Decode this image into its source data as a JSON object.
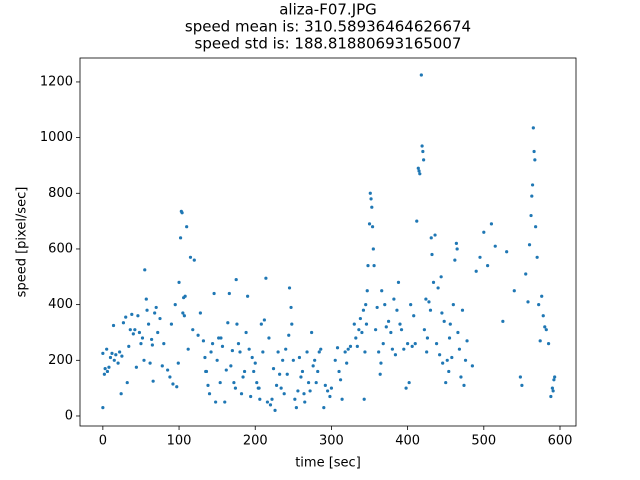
{
  "chart_data": {
    "type": "scatter",
    "title": "aliza-F07.JPG",
    "subtitle": [
      "speed mean is: 310.58936464626674",
      "speed std is: 188.81880693165007"
    ],
    "x_label": "time [sec]",
    "y_label": "speed [pixel/sec]",
    "color": "#1f77b4",
    "xlim": [
      -30,
      621
    ],
    "ylim": [
      -36,
      1286
    ],
    "xticks": [
      0,
      100,
      200,
      300,
      400,
      500,
      600
    ],
    "yticks": [
      0,
      200,
      400,
      600,
      800,
      1000,
      1200
    ],
    "x": [
      0,
      0,
      2,
      3,
      5,
      6,
      8,
      10,
      12,
      14,
      15,
      17,
      20,
      22,
      24,
      25,
      27,
      30,
      32,
      34,
      36,
      38,
      40,
      42,
      44,
      46,
      48,
      50,
      52,
      54,
      55,
      57,
      58,
      60,
      62,
      64,
      65,
      66,
      68,
      70,
      72,
      75,
      78,
      80,
      85,
      88,
      90,
      92,
      95,
      97,
      99,
      100,
      102,
      103,
      104,
      105,
      106,
      107,
      108,
      110,
      112,
      115,
      118,
      120,
      125,
      128,
      132,
      134,
      135,
      136,
      138,
      140,
      142,
      144,
      146,
      148,
      150,
      152,
      154,
      155,
      157,
      160,
      162,
      164,
      166,
      168,
      170,
      172,
      174,
      175,
      176,
      178,
      180,
      182,
      184,
      186,
      188,
      190,
      192,
      194,
      196,
      198,
      200,
      202,
      204,
      205,
      206,
      208,
      210,
      212,
      214,
      216,
      218,
      220,
      222,
      224,
      226,
      228,
      230,
      232,
      234,
      236,
      238,
      240,
      242,
      244,
      245,
      247,
      248,
      250,
      252,
      254,
      256,
      258,
      260,
      262,
      264,
      265,
      268,
      270,
      272,
      274,
      276,
      278,
      280,
      282,
      284,
      286,
      290,
      292,
      295,
      298,
      300,
      305,
      308,
      310,
      312,
      314,
      318,
      320,
      322,
      325,
      330,
      332,
      334,
      336,
      338,
      340,
      342,
      343,
      344,
      345,
      346,
      347,
      348,
      350,
      351,
      352,
      353,
      354,
      355,
      356,
      358,
      360,
      362,
      364,
      365,
      366,
      368,
      370,
      372,
      375,
      378,
      380,
      382,
      384,
      386,
      388,
      390,
      392,
      395,
      398,
      400,
      402,
      404,
      406,
      408,
      410,
      412,
      414,
      415,
      416,
      418,
      419,
      420,
      421,
      422,
      424,
      425,
      426,
      428,
      430,
      431,
      432,
      434,
      436,
      438,
      440,
      442,
      444,
      445,
      446,
      448,
      450,
      452,
      454,
      455,
      456,
      458,
      460,
      462,
      464,
      465,
      466,
      468,
      470,
      472,
      474,
      476,
      478,
      485,
      490,
      495,
      500,
      505,
      510,
      515,
      525,
      530,
      540,
      548,
      550,
      555,
      558,
      560,
      562,
      563,
      564,
      565,
      566,
      567,
      568,
      570,
      572,
      574,
      576,
      578,
      580,
      582,
      585,
      588,
      590,
      591,
      592,
      593
    ],
    "values": [
      225,
      30,
      150,
      170,
      240,
      160,
      175,
      210,
      225,
      325,
      200,
      220,
      190,
      230,
      80,
      215,
      335,
      355,
      120,
      250,
      310,
      365,
      295,
      310,
      175,
      360,
      300,
      260,
      280,
      200,
      525,
      420,
      380,
      330,
      190,
      275,
      255,
      125,
      370,
      390,
      300,
      350,
      180,
      260,
      165,
      140,
      330,
      115,
      400,
      105,
      190,
      480,
      640,
      735,
      730,
      370,
      425,
      360,
      430,
      680,
      240,
      570,
      310,
      560,
      290,
      370,
      270,
      210,
      160,
      160,
      110,
      80,
      230,
      260,
      440,
      50,
      200,
      280,
      120,
      280,
      250,
      50,
      165,
      335,
      440,
      180,
      235,
      120,
      100,
      490,
      330,
      260,
      230,
      80,
      140,
      160,
      300,
      430,
      240,
      70,
      210,
      160,
      190,
      120,
      100,
      100,
      60,
      330,
      230,
      345,
      495,
      50,
      280,
      40,
      60,
      170,
      20,
      110,
      230,
      150,
      100,
      200,
      80,
      240,
      150,
      290,
      460,
      390,
      330,
      200,
      60,
      30,
      90,
      210,
      140,
      160,
      80,
      50,
      230,
      120,
      90,
      300,
      180,
      200,
      120,
      160,
      230,
      240,
      30,
      110,
      90,
      70,
      100,
      200,
      245,
      160,
      130,
      60,
      230,
      190,
      240,
      250,
      330,
      280,
      250,
      310,
      350,
      300,
      380,
      60,
      230,
      400,
      330,
      450,
      540,
      690,
      800,
      780,
      750,
      680,
      600,
      540,
      310,
      390,
      230,
      150,
      190,
      450,
      260,
      400,
      320,
      340,
      300,
      240,
      420,
      220,
      380,
      480,
      330,
      310,
      240,
      100,
      260,
      120,
      400,
      250,
      360,
      260,
      700,
      890,
      880,
      870,
      1225,
      970,
      950,
      920,
      310,
      420,
      230,
      280,
      410,
      380,
      640,
      580,
      480,
      650,
      260,
      460,
      220,
      500,
      370,
      190,
      340,
      120,
      200,
      160,
      280,
      330,
      210,
      400,
      560,
      620,
      600,
      300,
      240,
      140,
      380,
      110,
      200,
      270,
      180,
      520,
      570,
      660,
      540,
      690,
      610,
      340,
      590,
      450,
      140,
      110,
      510,
      410,
      615,
      720,
      790,
      830,
      1035,
      950,
      920,
      680,
      570,
      400,
      270,
      430,
      360,
      320,
      310,
      260,
      70,
      100,
      90,
      130,
      140
    ]
  }
}
